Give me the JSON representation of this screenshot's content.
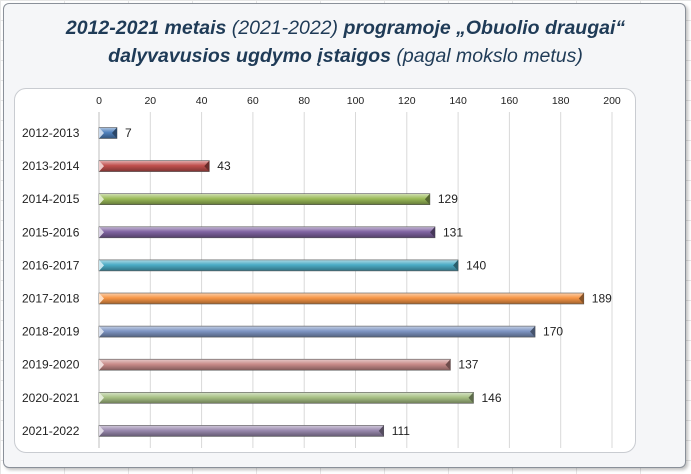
{
  "title": {
    "part1": "2012-2021 metais",
    "part2": "(2021-2022)",
    "part3": "programoje „Obuolio draugai“",
    "line2_bold": "dalyvavusios ugdymo įstaigos",
    "line2_light": "(pagal mokslo metus)"
  },
  "chart_data": {
    "type": "bar",
    "orientation": "horizontal",
    "categories": [
      "2012-2013",
      "2013-2014",
      "2014-2015",
      "2015-2016",
      "2016-2017",
      "2017-2018",
      "2018-2019",
      "2019-2020",
      "2020-2021",
      "2021-2022"
    ],
    "values": [
      7,
      43,
      129,
      131,
      140,
      189,
      170,
      137,
      146,
      111
    ],
    "xlim": [
      0,
      200
    ],
    "xticks": [
      0,
      20,
      40,
      60,
      80,
      100,
      120,
      140,
      160,
      180,
      200
    ],
    "xaxis_position": "top",
    "grid": true,
    "legend": "none",
    "bar_colors": [
      "#4f81bd",
      "#c0504d",
      "#9bbb59",
      "#8064a2",
      "#4bacc6",
      "#f79646",
      "#7f96c4",
      "#c98c8a",
      "#a9c286",
      "#9a8aaf"
    ]
  }
}
